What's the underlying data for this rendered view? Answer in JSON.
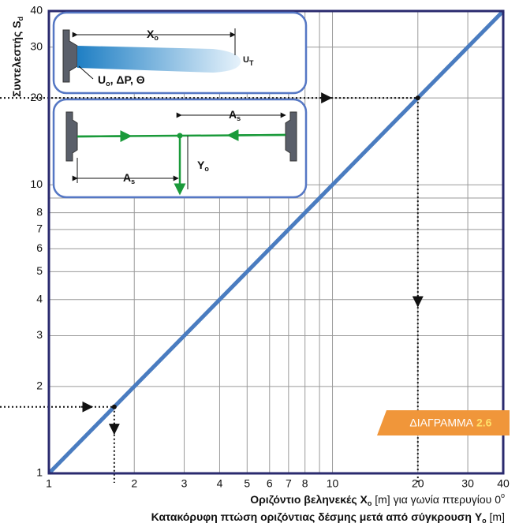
{
  "chart_data": {
    "type": "line",
    "xlog": true,
    "ylog": true,
    "grid": true,
    "y_label": {
      "text": "Συντελεστής S",
      "sub": "d"
    },
    "x_label": {
      "text": "Οριζόντιο βεληνεκές X",
      "sub": "o",
      "after": " [m] για γωνία πτερυγίου 0",
      "sup": "o"
    },
    "x_label2": {
      "text": "Κατακόρυφη πτώση οριζόντιας δέσμης μετά από σύγκρουση Y",
      "sub": "o",
      "after": " [m]"
    },
    "series": [
      {
        "x": [
          1,
          40
        ],
        "values": [
          1,
          40
        ],
        "color": "#4a7cc0"
      }
    ],
    "xlim": [
      1,
      40
    ],
    "ylim": [
      1,
      40
    ],
    "xticks": [
      1,
      2,
      3,
      4,
      5,
      6,
      7,
      8,
      10,
      20,
      30,
      40
    ],
    "yticks": [
      1,
      2,
      3,
      4,
      5,
      6,
      7,
      8,
      10,
      20,
      30,
      40
    ],
    "minor_grid": [
      9
    ],
    "examples": [
      {
        "x": 1.7,
        "y": 1.7
      },
      {
        "x": 20,
        "y": 20
      }
    ],
    "badge": {
      "text": "ΔΙΑΓΡΑΜΜΑ",
      "number": "2.6"
    },
    "inset": {
      "x_range": {
        "text": "X",
        "sub": "o"
      },
      "tip_velocity": {
        "text": "U",
        "sub": "T"
      },
      "nozzle": {
        "text": "U",
        "sub": "o",
        "after": ", ΔP, Θ"
      },
      "collision_right": {
        "text": "A",
        "sub": "s"
      },
      "collision_left": {
        "text": "A",
        "sub": "s"
      },
      "drop": {
        "text": "Y",
        "sub": "o"
      }
    }
  }
}
